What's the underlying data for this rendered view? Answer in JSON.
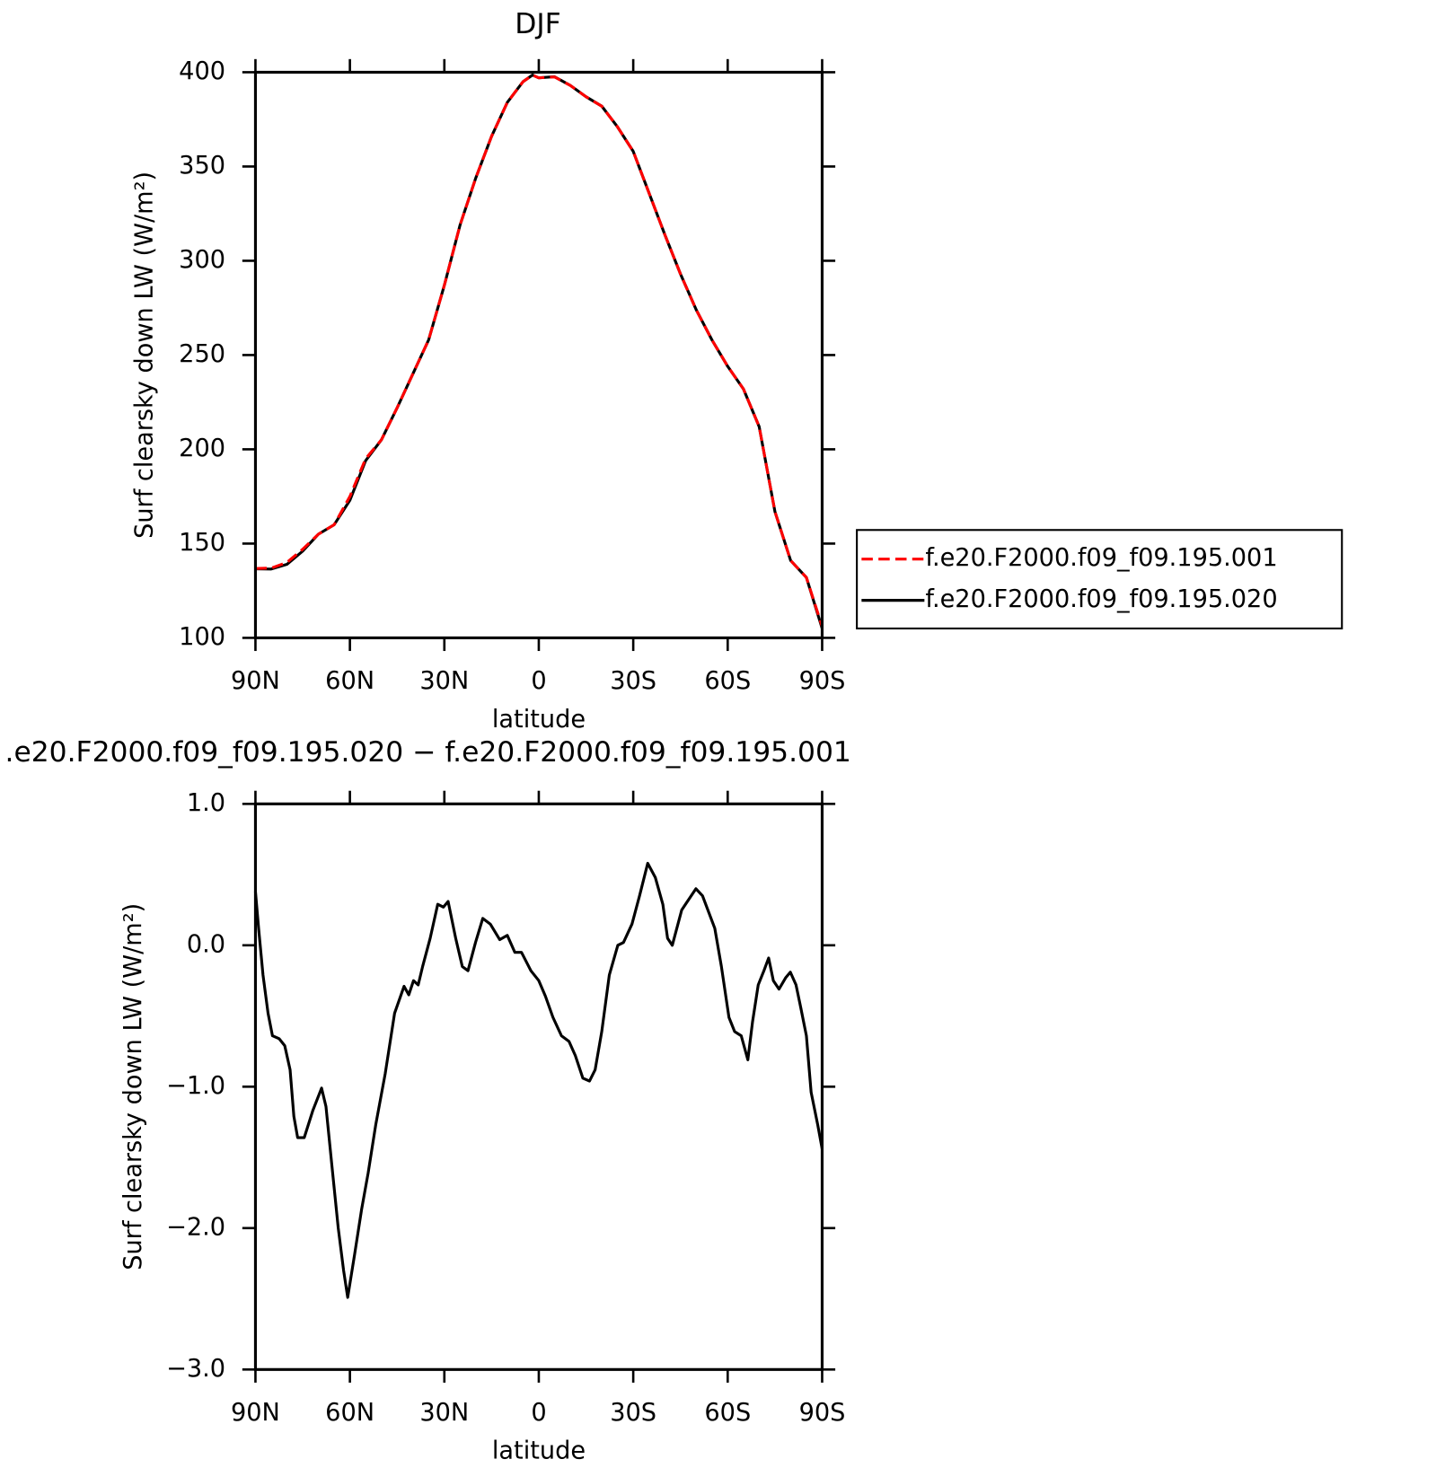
{
  "chart_data": [
    {
      "type": "line",
      "title": "DJF",
      "xlabel": "latitude",
      "ylabel": "Surf clearsky down LW (W/m²)",
      "x": [
        90,
        85,
        80,
        75,
        70,
        65,
        60,
        55,
        50,
        45,
        40,
        35,
        30,
        25,
        20,
        15,
        10,
        5,
        2,
        0,
        -5,
        -10,
        -15,
        -20,
        -25,
        -30,
        -35,
        -40,
        -45,
        -50,
        -55,
        -60,
        -65,
        -70,
        -75,
        -80,
        -85,
        -90
      ],
      "series": [
        {
          "name": "f.e20.F2000.f09_f09.195.001",
          "color": "#ff0000",
          "linestyle": "dashed",
          "values": [
            136.8,
            137,
            140,
            147,
            155,
            160,
            175,
            195,
            205,
            222,
            240,
            258,
            287,
            319,
            344,
            366,
            384,
            395,
            398.5,
            397,
            397.5,
            393,
            387,
            382,
            371,
            358,
            336,
            314,
            293,
            274,
            258,
            244,
            232,
            212,
            167,
            141,
            132,
            106
          ]
        },
        {
          "name": "f.e20.F2000.f09_f09.195.020",
          "color": "#000000",
          "linestyle": "solid",
          "values": [
            136.6,
            136.5,
            139,
            146,
            155,
            160,
            173,
            194,
            205,
            222,
            240,
            258,
            287,
            319,
            344,
            366,
            384,
            395,
            398.5,
            397,
            397.6,
            393,
            387,
            382,
            371,
            358,
            336,
            314,
            293,
            274,
            258,
            244,
            232,
            212,
            167,
            141,
            132,
            105
          ]
        }
      ],
      "xlim": [
        90,
        -90
      ],
      "ylim": [
        100,
        400
      ],
      "xticks": [
        {
          "value": 90,
          "label": "90N"
        },
        {
          "value": 60,
          "label": "60N"
        },
        {
          "value": 30,
          "label": "30N"
        },
        0,
        {
          "value": -30,
          "label": "30S"
        },
        {
          "value": -60,
          "label": "60S"
        },
        {
          "value": -90,
          "label": "90S"
        }
      ],
      "yticks": [
        100,
        150,
        200,
        250,
        300,
        350,
        400
      ],
      "legend": "right"
    },
    {
      "type": "line",
      "title": ".e20.F2000.f09_f09.195.020 − f.e20.F2000.f09_f09.195.001",
      "xlabel": "latitude",
      "ylabel": "Surf clearsky down LW (W/m²)",
      "x": [
        90,
        89,
        87.6,
        86,
        84.6,
        82.5,
        80.7,
        79,
        77.8,
        76.6,
        74.5,
        71.8,
        69,
        67.6,
        65.8,
        63.7,
        62,
        60.7,
        58.6,
        56.3,
        54.2,
        51.8,
        48.8,
        45.8,
        42.8,
        41.3,
        39.8,
        38.3,
        36.9,
        34.5,
        32.1,
        30.3,
        28.8,
        26.4,
        24.3,
        22.5,
        20.1,
        17.8,
        15.4,
        12.4,
        10,
        7.6,
        5.5,
        2.5,
        0,
        -2.1,
        -4.5,
        -7.2,
        -9.6,
        -11.6,
        -14,
        -16.1,
        -17.9,
        -20,
        -22.4,
        -25.1,
        -26.9,
        -29.6,
        -32,
        -34.6,
        -37,
        -39.4,
        -40.9,
        -42.4,
        -45.4,
        -47.8,
        -49.9,
        -52,
        -55.9,
        -58,
        -60.4,
        -62.2,
        -64.3,
        -66.4,
        -67.9,
        -69.7,
        -71.5,
        -73,
        -74.5,
        -76.3,
        -78.4,
        -79.9,
        -81.7,
        -83.2,
        -85,
        -86.5,
        -88.6,
        -90
      ],
      "series": [
        {
          "name": null,
          "color": "#000000",
          "linestyle": "solid",
          "values": [
            0.38,
            0.12,
            -0.21,
            -0.48,
            -0.64,
            -0.66,
            -0.71,
            -0.88,
            -1.21,
            -1.36,
            -1.36,
            -1.17,
            -1.01,
            -1.14,
            -1.54,
            -2.0,
            -2.3,
            -2.49,
            -2.2,
            -1.87,
            -1.61,
            -1.27,
            -0.91,
            -0.48,
            -0.29,
            -0.35,
            -0.25,
            -0.28,
            -0.15,
            0.05,
            0.29,
            0.27,
            0.31,
            0.05,
            -0.15,
            -0.18,
            0.02,
            0.19,
            0.15,
            0.04,
            0.07,
            -0.05,
            -0.05,
            -0.18,
            -0.25,
            -0.36,
            -0.51,
            -0.64,
            -0.68,
            -0.78,
            -0.94,
            -0.96,
            -0.88,
            -0.61,
            -0.21,
            0.0,
            0.02,
            0.15,
            0.35,
            0.58,
            0.48,
            0.29,
            0.05,
            0.0,
            0.25,
            0.33,
            0.4,
            0.35,
            0.12,
            -0.15,
            -0.51,
            -0.61,
            -0.64,
            -0.81,
            -0.54,
            -0.28,
            -0.18,
            -0.09,
            -0.25,
            -0.31,
            -0.23,
            -0.19,
            -0.28,
            -0.44,
            -0.64,
            -1.04,
            -1.27,
            -1.44
          ]
        }
      ],
      "xlim": [
        90,
        -90
      ],
      "ylim": [
        -3,
        1
      ],
      "xticks": [
        {
          "value": 90,
          "label": "90N"
        },
        {
          "value": 60,
          "label": "60N"
        },
        {
          "value": 30,
          "label": "30N"
        },
        0,
        {
          "value": -30,
          "label": "30S"
        },
        {
          "value": -60,
          "label": "60S"
        },
        {
          "value": -90,
          "label": "90S"
        }
      ],
      "yticks": [
        {
          "value": -3,
          "label": "−3.0"
        },
        {
          "value": -2,
          "label": "−2.0"
        },
        {
          "value": -1,
          "label": "−1.0"
        },
        {
          "value": 0,
          "label": "0.0"
        },
        {
          "value": 1,
          "label": "1.0"
        }
      ]
    }
  ]
}
